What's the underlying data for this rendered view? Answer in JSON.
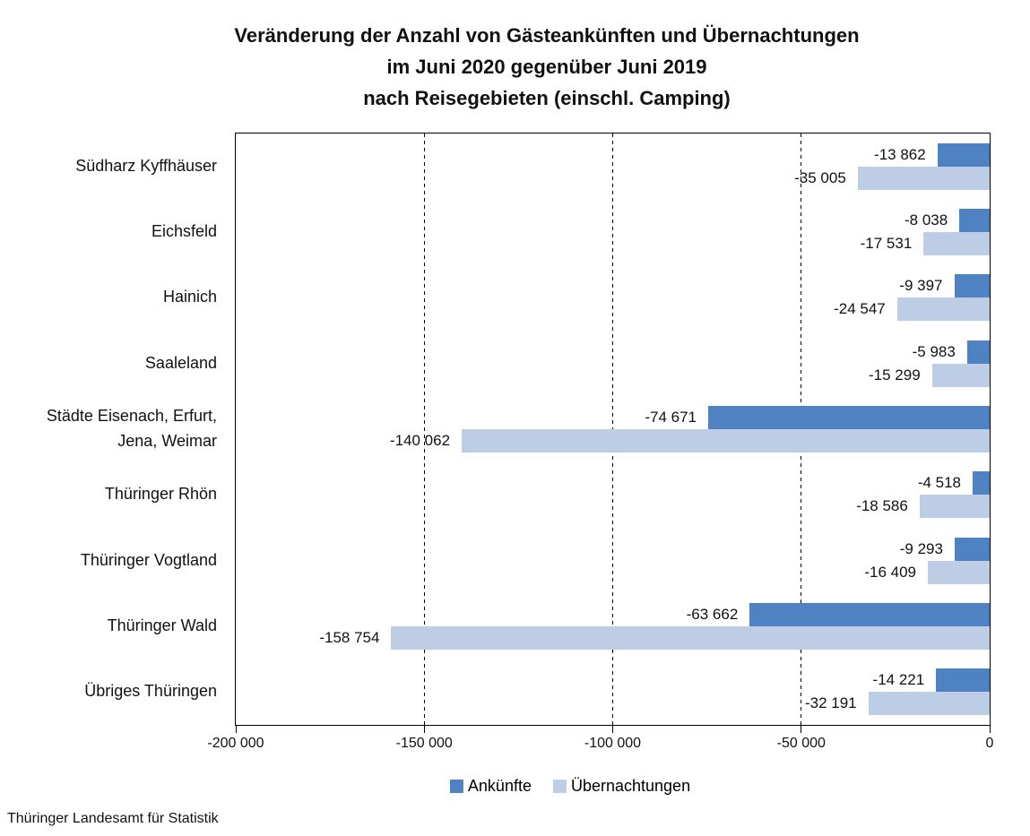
{
  "title": {
    "line1": "Veränderung der Anzahl von Gästeankünften und Übernachtungen",
    "line2": "im Juni 2020 gegenüber Juni 2019",
    "line3": "nach Reisegebieten (einschl. Camping)"
  },
  "chart_data": {
    "type": "bar",
    "orientation": "horizontal",
    "xlim": [
      -200000,
      0
    ],
    "grid": "vertical-dashed-inner-ticks",
    "legend_position": "bottom-center",
    "categories": [
      "Südharz Kyffhäuser",
      "Eichsfeld",
      "Hainich",
      "Saaleland",
      "Städte Eisenach, Erfurt, Jena, Weimar",
      "Thüringer Rhön",
      "Thüringer Vogtland",
      "Thüringer Wald",
      "Übriges Thüringen"
    ],
    "categories_display": [
      [
        "Südharz Kyffhäuser"
      ],
      [
        "Eichsfeld"
      ],
      [
        "Hainich"
      ],
      [
        "Saaleland"
      ],
      [
        "Städte Eisenach, Erfurt,",
        "Jena, Weimar"
      ],
      [
        "Thüringer Rhön"
      ],
      [
        "Thüringer Vogtland"
      ],
      [
        "Thüringer Wald"
      ],
      [
        "Übriges Thüringen"
      ]
    ],
    "series": [
      {
        "name": "Ankünfte",
        "color": "#4F82C2",
        "values": [
          -13862,
          -8038,
          -9397,
          -5983,
          -74671,
          -4518,
          -9293,
          -63662,
          -14221
        ],
        "labels": [
          "-13 862",
          "-8 038",
          "-9 397",
          "-5 983",
          "-74 671",
          "-4 518",
          "-9 293",
          "-63 662",
          "-14 221"
        ]
      },
      {
        "name": "Übernachtungen",
        "color": "#BCCDE5",
        "values": [
          -35005,
          -17531,
          -24547,
          -15299,
          -140062,
          -18586,
          -16409,
          -158754,
          -32191
        ],
        "labels": [
          "-35 005",
          "-17 531",
          "-24 547",
          "-15 299",
          "-140 062",
          "-18 586",
          "-16 409",
          "-158 754",
          "-32 191"
        ]
      }
    ],
    "x_ticks": [
      {
        "value": -200000,
        "label": "-200 000"
      },
      {
        "value": -150000,
        "label": "-150 000"
      },
      {
        "value": -100000,
        "label": "-100 000"
      },
      {
        "value": -50000,
        "label": "-50 000"
      },
      {
        "value": 0,
        "label": "0"
      }
    ]
  },
  "legend": {
    "items": [
      {
        "label": "Ankünfte",
        "color": "#4F82C2"
      },
      {
        "label": "Übernachtungen",
        "color": "#BCCDE5"
      }
    ]
  },
  "footer": {
    "source": "Thüringer Landesamt für Statistik"
  }
}
